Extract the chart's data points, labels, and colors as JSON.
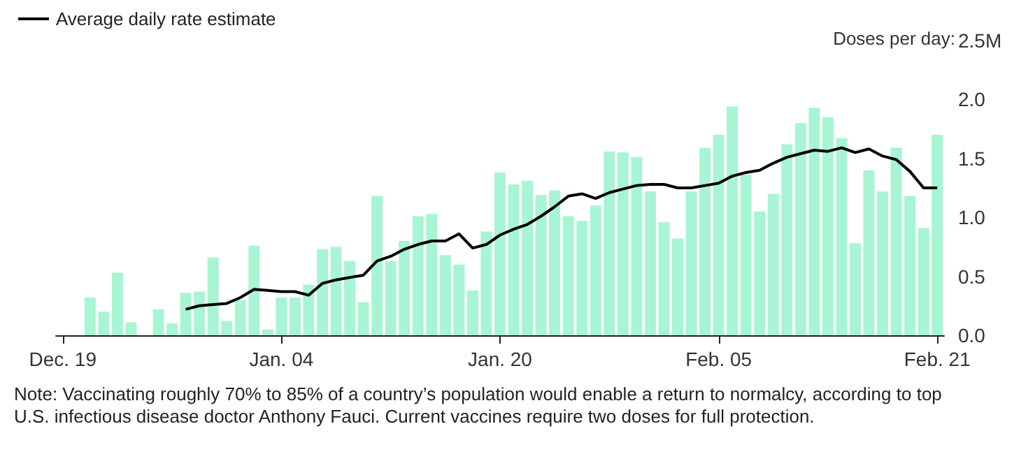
{
  "chart_data": {
    "type": "bar",
    "ylabel": "Doses per day:",
    "categories": [
      "Dec. 19",
      null,
      null,
      null,
      null,
      null,
      null,
      null,
      null,
      null,
      null,
      null,
      null,
      null,
      null,
      null,
      "Jan. 04",
      null,
      null,
      null,
      null,
      null,
      null,
      null,
      null,
      null,
      null,
      null,
      null,
      null,
      null,
      null,
      "Jan. 20",
      null,
      null,
      null,
      null,
      null,
      null,
      null,
      null,
      null,
      null,
      null,
      null,
      null,
      null,
      null,
      "Feb. 05",
      null,
      null,
      null,
      null,
      null,
      null,
      null,
      null,
      null,
      null,
      null,
      null,
      null,
      null,
      null,
      "Feb. 21"
    ],
    "series": [
      {
        "color": "#a8f5d3",
        "values": [
          null,
          null,
          0.32,
          0.2,
          0.53,
          0.11,
          null,
          0.22,
          0.1,
          0.36,
          0.37,
          0.66,
          0.12,
          0.3,
          0.76,
          0.05,
          0.32,
          0.32,
          0.43,
          0.73,
          0.75,
          0.63,
          0.28,
          1.18,
          0.63,
          0.8,
          1.01,
          1.03,
          0.68,
          0.6,
          0.38,
          0.88,
          1.38,
          1.28,
          1.31,
          1.19,
          1.23,
          1.01,
          0.97,
          1.1,
          1.56,
          1.55,
          1.51,
          1.22,
          0.96,
          0.82,
          1.22,
          1.59,
          1.7,
          1.94,
          1.36,
          1.05,
          1.2,
          1.62,
          1.8,
          1.93,
          1.85,
          1.67,
          0.78,
          1.4,
          1.22,
          1.59,
          1.18,
          0.91,
          1.7
        ]
      },
      {
        "type": "line",
        "name": "Average daily rate estimate",
        "color": "#000000",
        "values": [
          null,
          null,
          null,
          null,
          null,
          null,
          null,
          null,
          null,
          0.22,
          0.25,
          0.26,
          0.27,
          0.32,
          0.39,
          0.38,
          0.37,
          0.37,
          0.34,
          0.44,
          0.47,
          0.49,
          0.51,
          0.63,
          0.67,
          0.73,
          0.77,
          0.8,
          0.8,
          0.86,
          0.74,
          0.77,
          0.85,
          0.9,
          0.94,
          1.01,
          1.09,
          1.18,
          1.2,
          1.16,
          1.21,
          1.24,
          1.27,
          1.28,
          1.28,
          1.25,
          1.25,
          1.27,
          1.29,
          1.35,
          1.38,
          1.4,
          1.46,
          1.51,
          1.54,
          1.57,
          1.56,
          1.59,
          1.55,
          1.58,
          1.52,
          1.49,
          1.39,
          1.25,
          1.25
        ]
      }
    ],
    "ylim": [
      0,
      2.5
    ],
    "yticks": [
      {
        "value": 0,
        "label": "0.0"
      },
      {
        "value": 0.5,
        "label": "0.5"
      },
      {
        "value": 1,
        "label": "1.0"
      },
      {
        "value": 1.5,
        "label": "1.5"
      },
      {
        "value": 2,
        "label": "2.0"
      },
      {
        "value": 2.5,
        "label": "2.5M"
      }
    ],
    "legend": "top left",
    "annotations": [
      "Note: Vaccinating roughly 70% to 85% of a country’s population would enable a return to normalcy, according to top U.S. infectious disease doctor Anthony Fauci. Current vaccines require two doses for full protection."
    ]
  }
}
